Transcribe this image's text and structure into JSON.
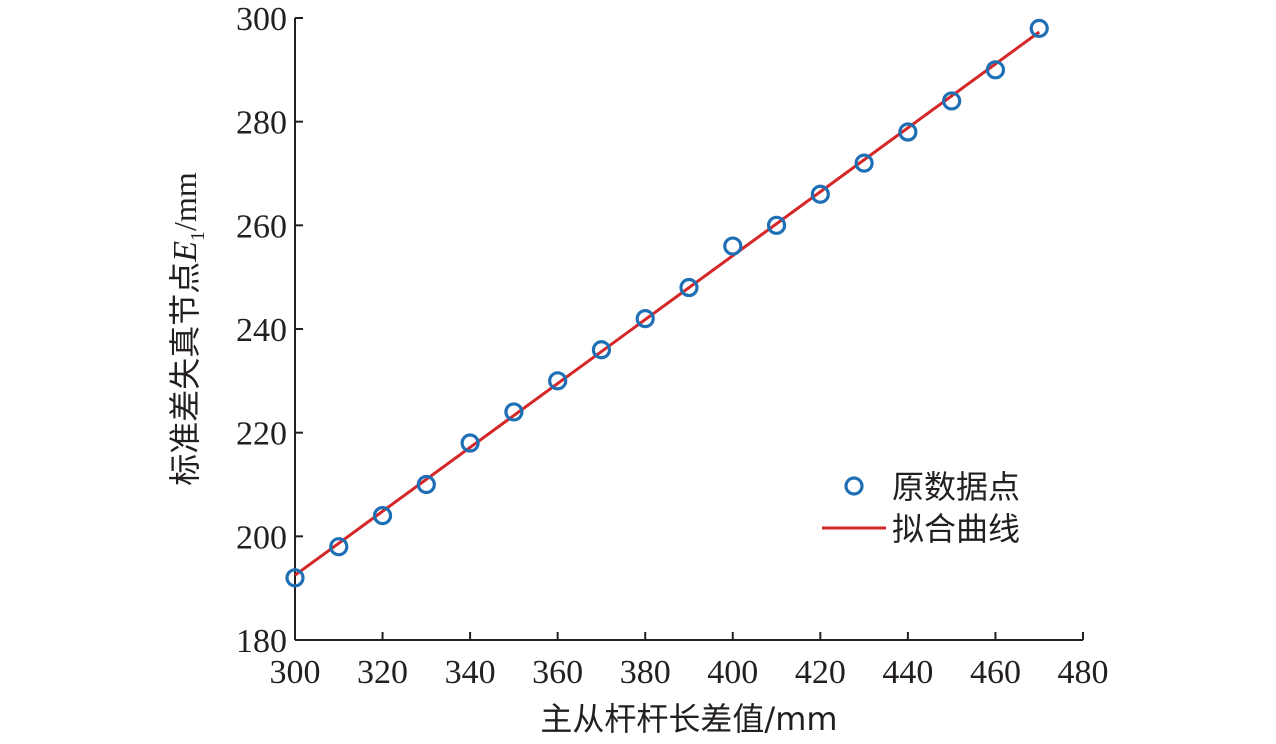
{
  "chart_data": {
    "type": "scatter",
    "title": "",
    "xlabel": "主从杆杆长差值/mm",
    "ylabel": {
      "prefix": "标准差失真节点",
      "var": "E",
      "sub": "1",
      "unit": "/mm"
    },
    "xlim": [
      300,
      480
    ],
    "ylim": [
      180,
      300
    ],
    "xticks": [
      "300",
      "320",
      "340",
      "360",
      "380",
      "400",
      "420",
      "440",
      "460",
      "480"
    ],
    "yticks": [
      "180",
      "200",
      "220",
      "240",
      "260",
      "280",
      "300"
    ],
    "grid": false,
    "legend_position": "lower-right",
    "series": [
      {
        "name": "原数据点",
        "kind": "scatter",
        "marker": "circle-open",
        "color": "#1f6fb5",
        "x": [
          300,
          310,
          320,
          330,
          340,
          350,
          360,
          370,
          380,
          390,
          400,
          410,
          420,
          430,
          440,
          450,
          460,
          470
        ],
        "y": [
          192,
          198,
          204,
          210,
          218,
          224,
          230,
          236,
          242,
          248,
          256,
          260,
          266,
          272,
          278,
          284,
          290,
          298
        ]
      },
      {
        "name": "拟合曲线",
        "kind": "line",
        "color": "#d62728",
        "x": [
          300,
          470
        ],
        "y": [
          192.5,
          297.3
        ]
      }
    ]
  }
}
